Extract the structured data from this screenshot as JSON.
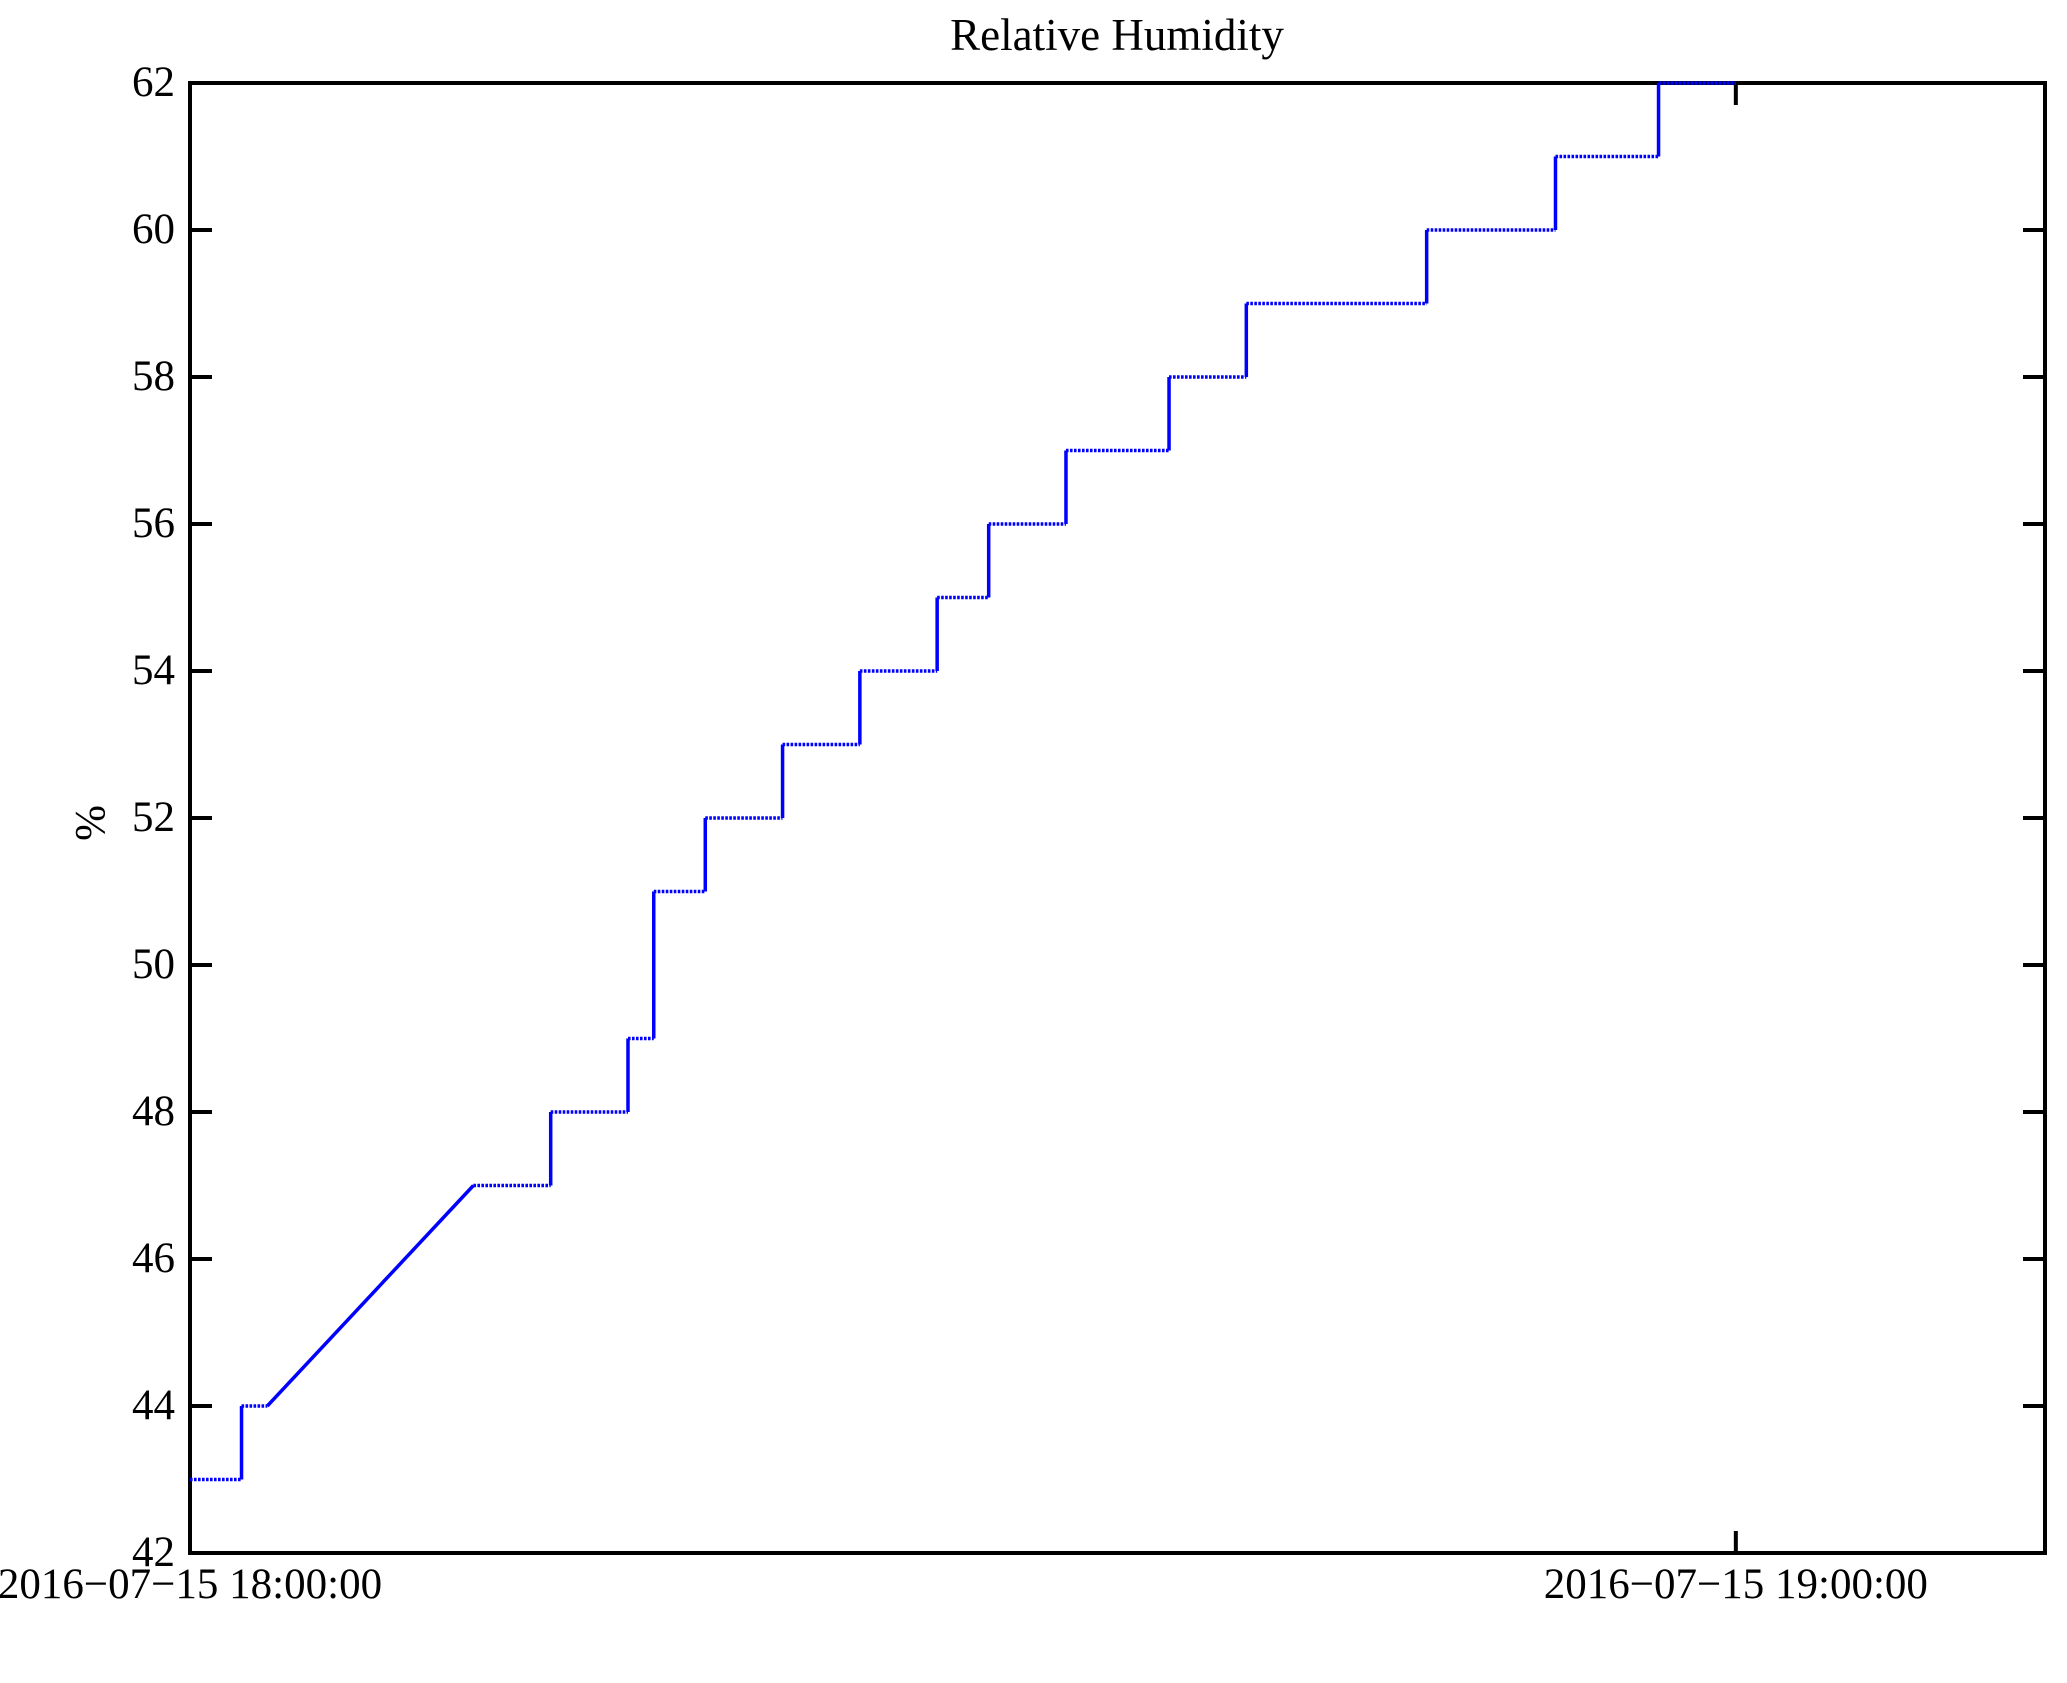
{
  "page": {
    "background": "#ffffff"
  },
  "chart_data": {
    "type": "line",
    "title": "Relative Humidity",
    "xlabel": "",
    "ylabel": "%",
    "line_color": "#0000ff",
    "frame_color": "#000000",
    "grid": false,
    "legend": "none",
    "ylim": [
      42,
      62
    ],
    "xlim_minutes": [
      0,
      72
    ],
    "y_ticks": [
      62,
      60,
      58,
      56,
      54,
      52,
      50,
      48,
      46,
      44,
      42
    ],
    "x_ticks": [
      {
        "minute": 0,
        "label": "2016−07−15 18:00:00"
      },
      {
        "minute": 60,
        "label": "2016−07−15 19:00:00"
      }
    ],
    "series": [
      {
        "name": "relative-humidity",
        "style": "step line; horizontal runs dotted, rises and ramp solid",
        "points_minute_percent": [
          [
            0,
            43
          ],
          [
            2,
            43
          ],
          [
            2,
            44
          ],
          [
            3,
            44
          ],
          [
            11,
            47
          ],
          [
            14,
            47
          ],
          [
            14,
            48
          ],
          [
            17,
            48
          ],
          [
            17,
            49
          ],
          [
            18,
            49
          ],
          [
            18,
            51
          ],
          [
            20,
            51
          ],
          [
            20,
            52
          ],
          [
            23,
            52
          ],
          [
            23,
            53
          ],
          [
            26,
            53
          ],
          [
            26,
            54
          ],
          [
            29,
            54
          ],
          [
            29,
            55
          ],
          [
            31,
            55
          ],
          [
            31,
            56
          ],
          [
            34,
            56
          ],
          [
            34,
            57
          ],
          [
            38,
            57
          ],
          [
            38,
            58
          ],
          [
            41,
            58
          ],
          [
            41,
            59
          ],
          [
            48,
            59
          ],
          [
            48,
            60
          ],
          [
            53,
            60
          ],
          [
            53,
            61
          ],
          [
            57,
            61
          ],
          [
            57,
            62
          ],
          [
            60,
            62
          ]
        ],
        "readings": [
          {
            "time": "18:00:00",
            "value": 43
          },
          {
            "time": "18:02:00",
            "value": 44
          },
          {
            "time": "18:03:00",
            "value": 44
          },
          {
            "time": "18:11:00",
            "value": 47
          },
          {
            "time": "18:14:00",
            "value": 48
          },
          {
            "time": "18:17:00",
            "value": 49
          },
          {
            "time": "18:18:00",
            "value": 51
          },
          {
            "time": "18:20:00",
            "value": 52
          },
          {
            "time": "18:23:00",
            "value": 53
          },
          {
            "time": "18:26:00",
            "value": 54
          },
          {
            "time": "18:29:00",
            "value": 55
          },
          {
            "time": "18:31:00",
            "value": 56
          },
          {
            "time": "18:34:00",
            "value": 57
          },
          {
            "time": "18:38:00",
            "value": 58
          },
          {
            "time": "18:41:00",
            "value": 59
          },
          {
            "time": "18:48:00",
            "value": 60
          },
          {
            "time": "18:53:00",
            "value": 61
          },
          {
            "time": "18:57:00",
            "value": 62
          },
          {
            "time": "19:00:00",
            "value": 62
          }
        ]
      }
    ]
  }
}
